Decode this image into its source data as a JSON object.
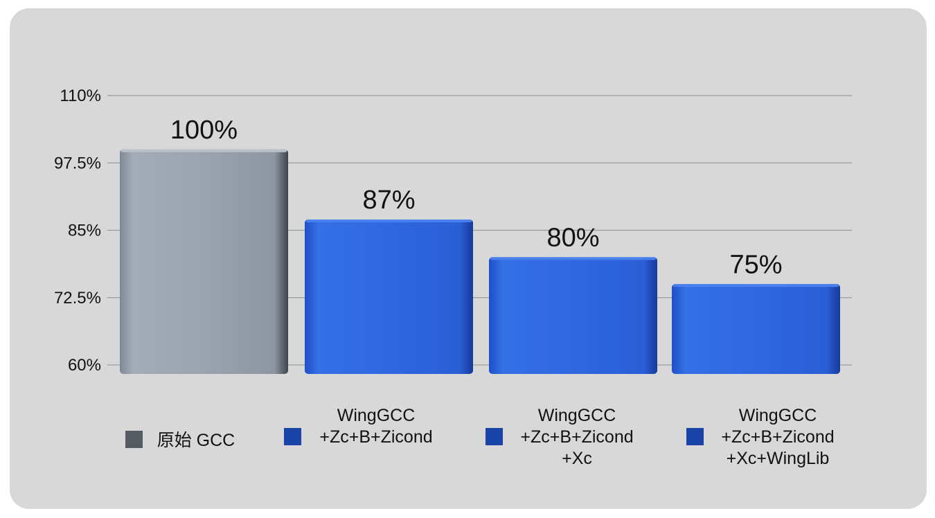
{
  "chart_data": {
    "type": "bar",
    "categories": [
      "原始 GCC",
      "WingGCC +Zc+B+Zicond",
      "WingGCC +Zc+B+Zicond +Xc",
      "WingGCC +Zc+B+Zicond +Xc+WingLib"
    ],
    "values": [
      100,
      87,
      80,
      75
    ],
    "data_labels": [
      "100%",
      "87%",
      "80%",
      "75%"
    ],
    "ylim": [
      60,
      110
    ],
    "yticks": [
      60,
      72.5,
      85,
      97.5,
      110
    ],
    "ytick_labels": [
      "60%",
      "72.5%",
      "85%",
      "97.5%",
      "110%"
    ],
    "grid": true,
    "legend": [
      {
        "lines": [
          "原始 GCC"
        ],
        "color": "#555b62"
      },
      {
        "lines": [
          "WingGCC",
          "+Zc+B+Zicond"
        ],
        "color": "#1a44a8"
      },
      {
        "lines": [
          "WingGCC",
          "+Zc+B+Zicond",
          "+Xc"
        ],
        "color": "#1a44a8"
      },
      {
        "lines": [
          "WingGCC",
          "+Zc+B+Zicond",
          "+Xc+WingLib"
        ],
        "color": "#1a44a8"
      }
    ],
    "legend_position": "bottom",
    "bar_colors": [
      "#9aa3ae",
      "#2f67e0",
      "#2f67e0",
      "#2f67e0"
    ]
  }
}
